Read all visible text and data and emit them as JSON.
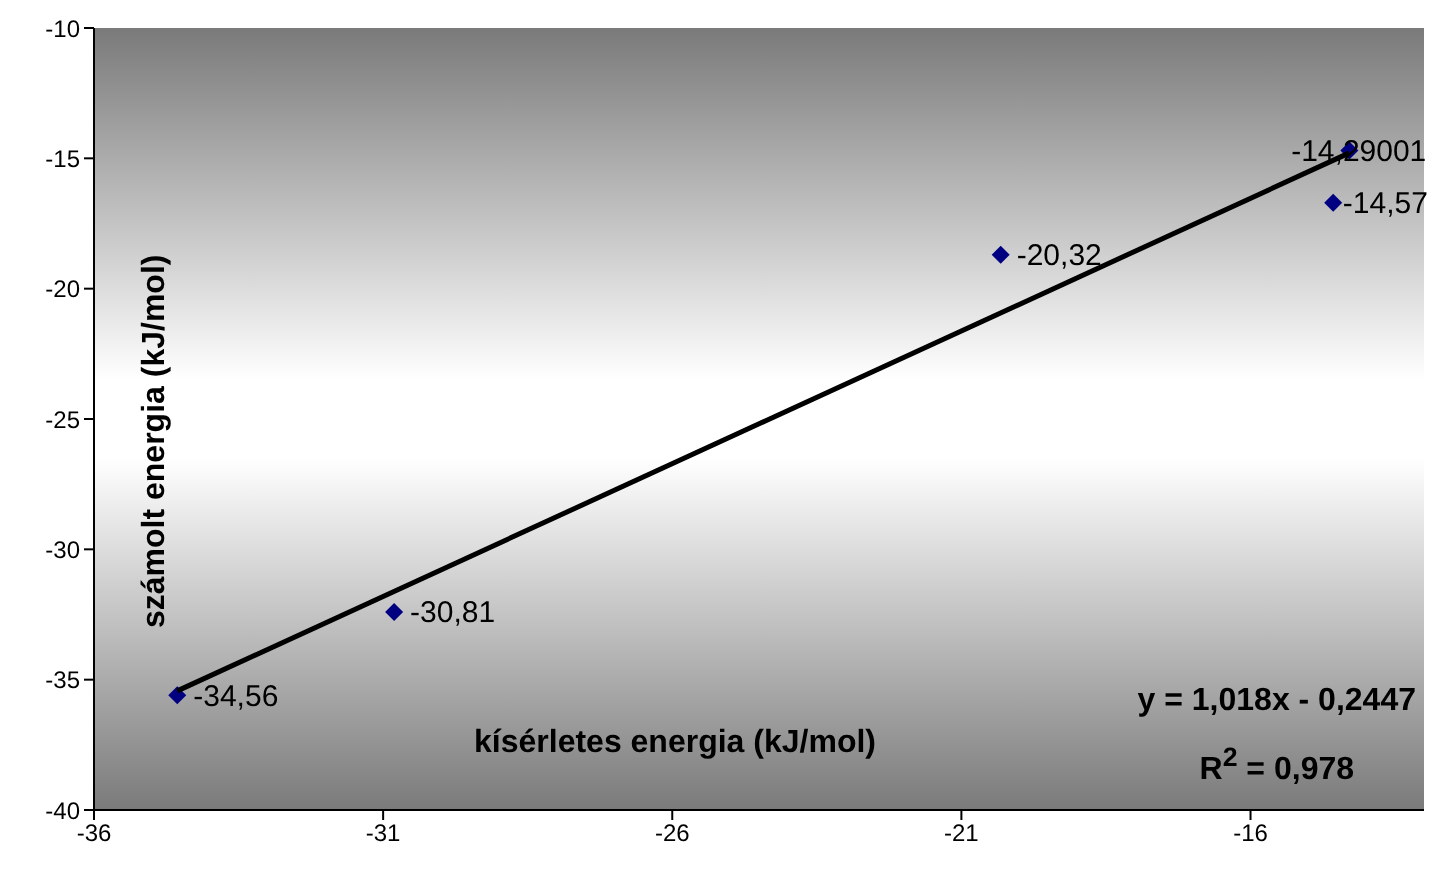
{
  "chart_data": {
    "type": "scatter",
    "xlabel": "kísérletes energia (kJ/mol)",
    "ylabel": "számolt energia (kJ/mol)",
    "xlim": [
      -36,
      -13
    ],
    "xticks": [
      -36,
      -31,
      -26,
      -21,
      -16
    ],
    "ylim": [
      -40,
      -10
    ],
    "yticks": [
      -40,
      -35,
      -30,
      -25,
      -20,
      -15,
      -10
    ],
    "marker": "diamond",
    "grid": false,
    "legend": false,
    "series": [
      {
        "type": "scatter",
        "color": "#000080",
        "x": [
          -34.56,
          -30.81,
          -20.32,
          -14.57,
          -14.29001
        ],
        "values": [
          -35.6,
          -32.4,
          -18.7,
          -16.7,
          -14.7
        ]
      },
      {
        "type": "line",
        "marker": "none",
        "color": "#000000",
        "x": [
          -34.56,
          -14.29001
        ],
        "values": [
          -35.43,
          -14.79
        ]
      }
    ],
    "annotations": [
      {
        "text": "-34,56",
        "x": -34.56,
        "y": -35.6
      },
      {
        "text": "-30,81",
        "x": -30.81,
        "y": -32.4
      },
      {
        "text": "-20,32",
        "x": -20.32,
        "y": -18.7
      },
      {
        "text": "-14,57",
        "x": -14.57,
        "y": -16.7
      },
      {
        "text": "-14,29001",
        "x": -14.29001,
        "y": -14.7
      },
      "y = 1,018x - 0,2447",
      "R$^{2}$ = 0,978"
    ]
  }
}
